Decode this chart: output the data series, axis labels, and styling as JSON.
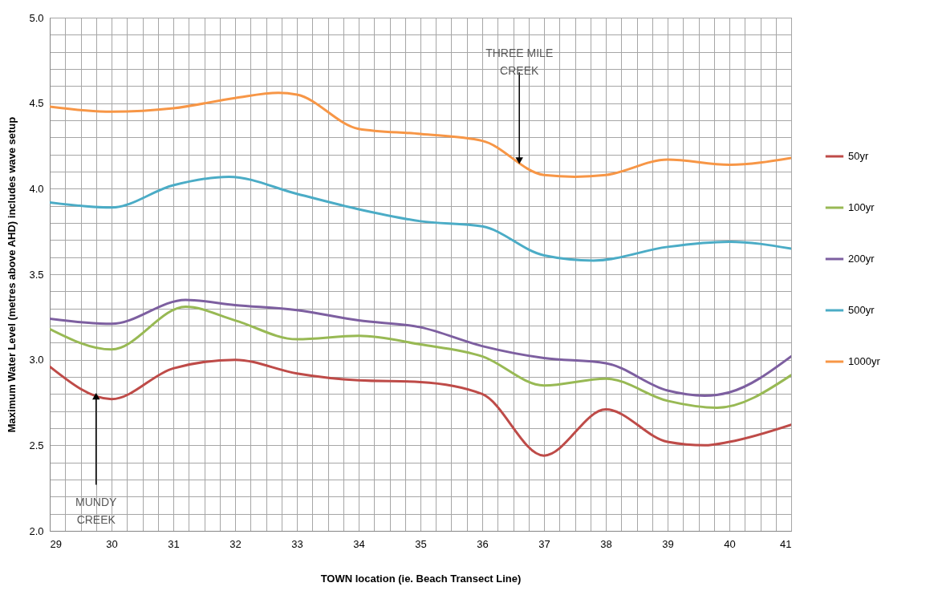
{
  "chart_data": {
    "type": "line",
    "xlabel": "TOWN location  (ie. Beach Transect Line)",
    "ylabel": "Maximum Water Level (metres above AHD) includes wave setup",
    "xlim": [
      29,
      41
    ],
    "ylim": [
      2.0,
      5.0
    ],
    "xticks": [
      29,
      {
        "value": 29.25,
        "label": null
      },
      {
        "value": 29.5,
        "label": null
      },
      {
        "value": 29.75,
        "label": null
      },
      30,
      {
        "value": 30.25,
        "label": null
      },
      {
        "value": 30.5,
        "label": null
      },
      {
        "value": 30.75,
        "label": null
      },
      31,
      {
        "value": 31.25,
        "label": null
      },
      {
        "value": 31.5,
        "label": null
      },
      {
        "value": 31.75,
        "label": null
      },
      32,
      {
        "value": 32.25,
        "label": null
      },
      {
        "value": 32.5,
        "label": null
      },
      {
        "value": 32.75,
        "label": null
      },
      33,
      {
        "value": 33.25,
        "label": null
      },
      {
        "value": 33.5,
        "label": null
      },
      {
        "value": 33.75,
        "label": null
      },
      34,
      {
        "value": 34.25,
        "label": null
      },
      {
        "value": 34.5,
        "label": null
      },
      {
        "value": 34.75,
        "label": null
      },
      35,
      {
        "value": 35.25,
        "label": null
      },
      {
        "value": 35.5,
        "label": null
      },
      {
        "value": 35.75,
        "label": null
      },
      36,
      {
        "value": 36.25,
        "label": null
      },
      {
        "value": 36.5,
        "label": null
      },
      {
        "value": 36.75,
        "label": null
      },
      37,
      {
        "value": 37.25,
        "label": null
      },
      {
        "value": 37.5,
        "label": null
      },
      {
        "value": 37.75,
        "label": null
      },
      38,
      {
        "value": 38.25,
        "label": null
      },
      {
        "value": 38.5,
        "label": null
      },
      {
        "value": 38.75,
        "label": null
      },
      39,
      {
        "value": 39.25,
        "label": null
      },
      {
        "value": 39.5,
        "label": null
      },
      {
        "value": 39.75,
        "label": null
      },
      40,
      {
        "value": 40.25,
        "label": null
      },
      {
        "value": 40.5,
        "label": null
      },
      {
        "value": 40.75,
        "label": null
      },
      41
    ],
    "yticks": [
      {
        "value": 2.0,
        "label": "2.0"
      },
      {
        "value": 2.1,
        "label": null
      },
      {
        "value": 2.2,
        "label": null
      },
      {
        "value": 2.3,
        "label": null
      },
      {
        "value": 2.4,
        "label": null
      },
      2.5,
      {
        "value": 2.6,
        "label": null
      },
      {
        "value": 2.7,
        "label": null
      },
      {
        "value": 2.8,
        "label": null
      },
      {
        "value": 2.9,
        "label": null
      },
      {
        "value": 3.0,
        "label": "3.0"
      },
      {
        "value": 3.1,
        "label": null
      },
      {
        "value": 3.2,
        "label": null
      },
      {
        "value": 3.3,
        "label": null
      },
      {
        "value": 3.4,
        "label": null
      },
      3.5,
      {
        "value": 3.6,
        "label": null
      },
      {
        "value": 3.7,
        "label": null
      },
      {
        "value": 3.8,
        "label": null
      },
      {
        "value": 3.9,
        "label": null
      },
      {
        "value": 4.0,
        "label": "4.0"
      },
      {
        "value": 4.1,
        "label": null
      },
      {
        "value": 4.2,
        "label": null
      },
      {
        "value": 4.3,
        "label": null
      },
      {
        "value": 4.4,
        "label": null
      },
      4.5,
      {
        "value": 4.6,
        "label": null
      },
      {
        "value": 4.7,
        "label": null
      },
      {
        "value": 4.8,
        "label": null
      },
      {
        "value": 4.9,
        "label": null
      },
      {
        "value": 5.0,
        "label": "5.0"
      }
    ],
    "grid": true,
    "legend": "right",
    "marker": "none",
    "line_style": "solid",
    "series": [
      {
        "name": "50yr",
        "color": "#be4b48",
        "x": [
          29,
          30,
          31,
          32,
          33,
          34,
          35,
          36,
          37,
          38,
          39,
          39.6,
          40,
          41
        ],
        "values": [
          2.96,
          2.77,
          2.95,
          3.0,
          2.92,
          2.88,
          2.87,
          2.8,
          2.44,
          2.71,
          2.52,
          2.5,
          2.52,
          2.62
        ]
      },
      {
        "name": "100yr",
        "color": "#98b954",
        "x": [
          29,
          30,
          31.2,
          32,
          33,
          34,
          35,
          36,
          37,
          38,
          39,
          39.8,
          41
        ],
        "values": [
          3.18,
          3.06,
          3.31,
          3.23,
          3.12,
          3.14,
          3.09,
          3.02,
          2.85,
          2.89,
          2.76,
          2.72,
          2.91
        ]
      },
      {
        "name": "200yr",
        "color": "#7d5fa0",
        "x": [
          29,
          30,
          31.2,
          32,
          33,
          34,
          35,
          36,
          37,
          38,
          39,
          39.6,
          40,
          41
        ],
        "values": [
          3.24,
          3.21,
          3.35,
          3.32,
          3.29,
          3.23,
          3.19,
          3.08,
          3.01,
          2.98,
          2.82,
          2.79,
          2.81,
          3.02
        ]
      },
      {
        "name": "500yr",
        "color": "#4bacc6",
        "x": [
          29,
          30,
          31,
          31.9,
          33,
          34,
          35,
          36,
          37,
          37.8,
          39,
          40,
          41
        ],
        "values": [
          3.92,
          3.89,
          4.02,
          4.07,
          3.97,
          3.88,
          3.81,
          3.78,
          3.61,
          3.58,
          3.66,
          3.69,
          3.65
        ]
      },
      {
        "name": "1000yr",
        "color": "#f79646",
        "x": [
          29,
          30,
          31,
          32,
          32.7,
          33,
          34,
          35,
          36,
          37,
          37.5,
          38,
          39,
          40,
          41
        ],
        "values": [
          4.48,
          4.45,
          4.47,
          4.53,
          4.56,
          4.55,
          4.35,
          4.32,
          4.28,
          4.08,
          4.07,
          4.08,
          4.17,
          4.14,
          4.18
        ]
      }
    ],
    "annotations": [
      {
        "text": "THREE  MILE\nCREEK",
        "x": 36.6,
        "y": 4.17
      },
      {
        "text": "MUNDY\nCREEK",
        "x": 29.75,
        "y": 2.78
      }
    ]
  }
}
